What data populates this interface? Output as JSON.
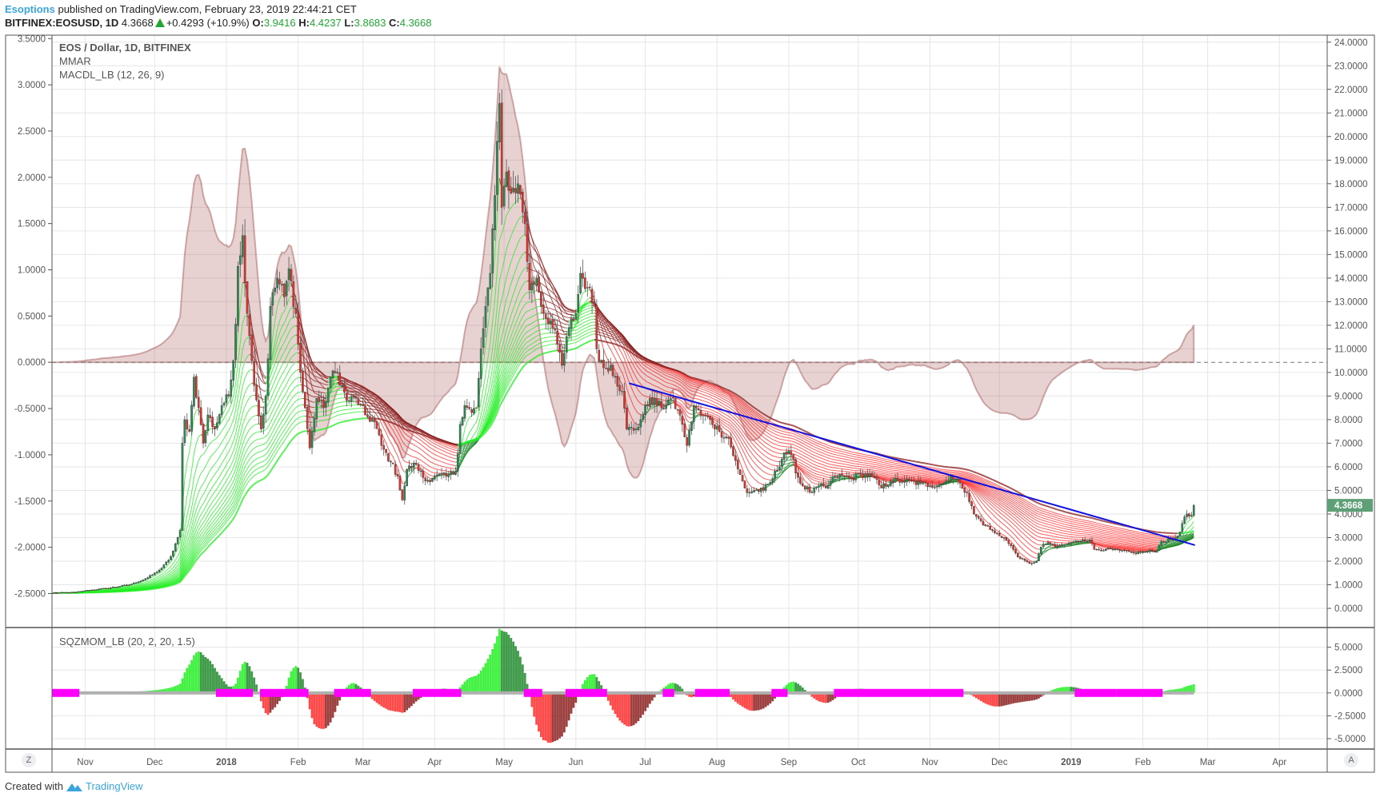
{
  "header": {
    "author": "Esoptions",
    "published": "published on TradingView.com, February 23, 2019 22:44:21 CET",
    "symbol": "BITFINEX:EOSUSD, 1D",
    "last": "4.3668",
    "change": "+0.4293 (+10.9%)",
    "o_label": "O:",
    "o": "3.9416",
    "h_label": "H:",
    "h": "4.4237",
    "l_label": "L:",
    "l": "3.8683",
    "c_label": "C:",
    "c": "4.3668"
  },
  "legend": {
    "title": "EOS / Dollar, 1D, BITFINEX",
    "mmar": "MMAR",
    "macd": "MACDL_LB (12, 26, 9)",
    "sqz": "SQZMOM_LB (20, 2, 20, 1.5)"
  },
  "time_axis": {
    "left_button": "Z",
    "right_button": "A"
  },
  "footer": {
    "created": "Created with",
    "brand": "TradingView"
  },
  "colors": {
    "up": "#2f8a55",
    "down": "#e3342a",
    "lime": "#22ee22",
    "green": "#1f8a2a",
    "maroon": "#8b1e1e",
    "red": "#ff2a2a",
    "macd_fill": "rgba(170,90,90,0.28)",
    "macd_line": "rgba(160,80,80,0.45)",
    "squeeze_on": "#ff00ff",
    "squeeze_off": "#b0b0b0",
    "trendline": "#1010e0",
    "last_price": "#5f9f77",
    "author": "#3aa5dc"
  },
  "chart_data": {
    "type": "candlestick",
    "title": "EOS / Dollar, 1D, BITFINEX",
    "x_start": "2017-10-18",
    "days": 494,
    "price_anchors": [
      [
        0,
        0.65
      ],
      [
        10,
        0.68
      ],
      [
        14,
        0.75
      ],
      [
        23,
        0.85
      ],
      [
        33,
        1.0
      ],
      [
        41,
        1.3
      ],
      [
        47,
        1.7
      ],
      [
        51,
        2.2
      ],
      [
        55,
        3.3
      ],
      [
        56,
        7.0
      ],
      [
        57,
        8.0
      ],
      [
        59,
        7.5
      ],
      [
        61,
        9.8
      ],
      [
        63,
        8.5
      ],
      [
        65,
        7.0
      ],
      [
        67,
        8.2
      ],
      [
        70,
        7.6
      ],
      [
        73,
        8.6
      ],
      [
        76,
        9.0
      ],
      [
        78,
        10.5
      ],
      [
        80,
        14.5
      ],
      [
        82,
        15.8
      ],
      [
        84,
        12.5
      ],
      [
        86,
        10.5
      ],
      [
        90,
        7.6
      ],
      [
        92,
        9.0
      ],
      [
        94,
        12.8
      ],
      [
        97,
        14.0
      ],
      [
        100,
        13.2
      ],
      [
        102,
        14.4
      ],
      [
        105,
        12.5
      ],
      [
        107,
        10.0
      ],
      [
        109,
        8.5
      ],
      [
        111,
        6.8
      ],
      [
        114,
        8.9
      ],
      [
        117,
        8.5
      ],
      [
        120,
        9.8
      ],
      [
        123,
        10.0
      ],
      [
        127,
        8.8
      ],
      [
        131,
        8.9
      ],
      [
        135,
        8.2
      ],
      [
        139,
        7.9
      ],
      [
        142,
        6.9
      ],
      [
        146,
        6.2
      ],
      [
        149,
        5.6
      ],
      [
        151,
        4.6
      ],
      [
        153,
        5.9
      ],
      [
        157,
        6.1
      ],
      [
        161,
        5.4
      ],
      [
        165,
        5.6
      ],
      [
        170,
        5.6
      ],
      [
        174,
        5.8
      ],
      [
        176,
        7.8
      ],
      [
        178,
        8.6
      ],
      [
        181,
        8.3
      ],
      [
        183,
        8.5
      ],
      [
        185,
        11.0
      ],
      [
        187,
        12.8
      ],
      [
        189,
        14.2
      ],
      [
        191,
        17.5
      ],
      [
        192,
        19.8
      ],
      [
        193,
        21.4
      ],
      [
        194,
        17.0
      ],
      [
        196,
        18.5
      ],
      [
        198,
        17.6
      ],
      [
        201,
        18.0
      ],
      [
        204,
        16.3
      ],
      [
        206,
        13.5
      ],
      [
        209,
        14.0
      ],
      [
        212,
        12.5
      ],
      [
        215,
        12.2
      ],
      [
        218,
        11.2
      ],
      [
        220,
        10.3
      ],
      [
        223,
        11.9
      ],
      [
        226,
        12.5
      ],
      [
        228,
        14.2
      ],
      [
        231,
        13.6
      ],
      [
        234,
        12.8
      ],
      [
        235,
        11.0
      ],
      [
        238,
        10.2
      ],
      [
        241,
        10.3
      ],
      [
        243,
        9.8
      ],
      [
        246,
        9.2
      ],
      [
        248,
        7.6
      ],
      [
        252,
        7.6
      ],
      [
        254,
        8.0
      ],
      [
        258,
        8.9
      ],
      [
        263,
        8.5
      ],
      [
        267,
        8.9
      ],
      [
        270,
        8.4
      ],
      [
        272,
        7.8
      ],
      [
        274,
        6.9
      ],
      [
        277,
        8.6
      ],
      [
        280,
        8.2
      ],
      [
        284,
        8.0
      ],
      [
        288,
        7.5
      ],
      [
        292,
        7.2
      ],
      [
        296,
        5.9
      ],
      [
        300,
        4.9
      ],
      [
        303,
        5.0
      ],
      [
        307,
        5.0
      ],
      [
        311,
        5.5
      ],
      [
        316,
        6.6
      ],
      [
        319,
        6.5
      ],
      [
        323,
        5.3
      ],
      [
        328,
        4.9
      ],
      [
        331,
        5.2
      ],
      [
        334,
        5.1
      ],
      [
        338,
        5.6
      ],
      [
        342,
        5.6
      ],
      [
        345,
        5.5
      ],
      [
        349,
        5.7
      ],
      [
        354,
        5.6
      ],
      [
        358,
        5.1
      ],
      [
        362,
        5.4
      ],
      [
        367,
        5.4
      ],
      [
        375,
        5.3
      ],
      [
        379,
        5.2
      ],
      [
        385,
        5.3
      ],
      [
        388,
        5.6
      ],
      [
        392,
        5.3
      ],
      [
        395,
        4.9
      ],
      [
        398,
        4.0
      ],
      [
        403,
        3.5
      ],
      [
        407,
        3.2
      ],
      [
        411,
        3.0
      ],
      [
        415,
        2.5
      ],
      [
        418,
        2.1
      ],
      [
        422,
        1.9
      ],
      [
        425,
        2.0
      ],
      [
        427,
        2.6
      ],
      [
        430,
        2.8
      ],
      [
        433,
        2.6
      ],
      [
        437,
        2.7
      ],
      [
        441,
        2.8
      ],
      [
        445,
        2.9
      ],
      [
        448,
        2.9
      ],
      [
        450,
        2.5
      ],
      [
        455,
        2.5
      ],
      [
        461,
        2.45
      ],
      [
        467,
        2.35
      ],
      [
        472,
        2.4
      ],
      [
        477,
        2.45
      ],
      [
        479,
        2.85
      ],
      [
        483,
        2.9
      ],
      [
        486,
        3.05
      ],
      [
        488,
        3.6
      ],
      [
        490,
        4.0
      ],
      [
        491,
        3.9
      ],
      [
        492,
        3.94
      ],
      [
        493,
        4.3668
      ]
    ],
    "last_price_label": "4.3668",
    "right_axis": {
      "min": 0,
      "max": 24,
      "ticks": [
        "0.0000",
        "1.0000",
        "2.0000",
        "3.0000",
        "4.0000",
        "5.0000",
        "6.0000",
        "7.0000",
        "8.0000",
        "9.0000",
        "10.0000",
        "11.0000",
        "12.0000",
        "13.0000",
        "14.0000",
        "15.0000",
        "16.0000",
        "17.0000",
        "18.0000",
        "19.0000",
        "20.0000",
        "21.0000",
        "22.0000",
        "23.0000",
        "24.0000"
      ]
    },
    "left_axis": {
      "min": -2.5,
      "max": 3.5,
      "ticks": [
        "-2.5000",
        "-2.0000",
        "-1.5000",
        "-1.0000",
        "-0.5000",
        "0.0000",
        "0.5000",
        "1.0000",
        "1.5000",
        "2.0000",
        "2.5000",
        "3.0000",
        "3.5000"
      ]
    },
    "sub_axis": {
      "min": -5,
      "max": 5,
      "ticks": [
        "-5.0000",
        "-2.5000",
        "0.0000",
        "2.5000",
        "5.0000"
      ]
    },
    "x_ticks": [
      {
        "label": "Nov",
        "day": 14
      },
      {
        "label": "Dec",
        "day": 44
      },
      {
        "label": "2018",
        "day": 75,
        "bold": true
      },
      {
        "label": "Feb",
        "day": 106
      },
      {
        "label": "Mar",
        "day": 134
      },
      {
        "label": "Apr",
        "day": 165
      },
      {
        "label": "May",
        "day": 195
      },
      {
        "label": "Jun",
        "day": 226
      },
      {
        "label": "Jul",
        "day": 256
      },
      {
        "label": "Aug",
        "day": 287
      },
      {
        "label": "Sep",
        "day": 318
      },
      {
        "label": "Oct",
        "day": 348
      },
      {
        "label": "Nov",
        "day": 379
      },
      {
        "label": "Dec",
        "day": 409
      },
      {
        "label": "2019",
        "day": 440,
        "bold": true
      },
      {
        "label": "Feb",
        "day": 471
      },
      {
        "label": "Mar",
        "day": 499
      },
      {
        "label": "Apr",
        "day": 530
      }
    ],
    "mmar_periods": [
      5,
      10,
      15,
      20,
      25,
      30,
      35,
      40,
      45,
      50,
      55,
      60,
      65,
      70,
      75,
      80,
      85,
      90,
      100
    ],
    "macd": {
      "fast": 12,
      "slow": 26,
      "signal": 9
    },
    "sqzmom": {
      "length": 20,
      "mult": 2,
      "kc_length": 20,
      "kc_mult": 1.5
    },
    "squeeze_on_ranges": [
      [
        0,
        11
      ],
      [
        71,
        86
      ],
      [
        90,
        110
      ],
      [
        122,
        137
      ],
      [
        156,
        176
      ],
      [
        204,
        211
      ],
      [
        222,
        239
      ],
      [
        264,
        268
      ],
      [
        278,
        292
      ],
      [
        311,
        317
      ],
      [
        338,
        393
      ],
      [
        442,
        459
      ],
      [
        460,
        479
      ]
    ],
    "trendline": {
      "from": [
        249,
        9.54
      ],
      "to": [
        493.5,
        2.68
      ]
    }
  }
}
